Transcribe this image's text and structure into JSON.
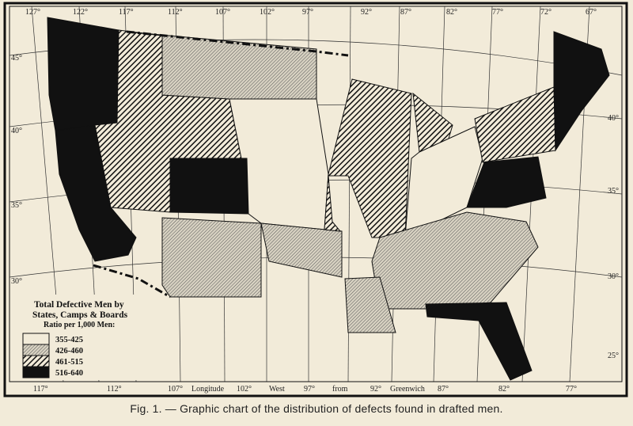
{
  "map": {
    "top_longitudes": [
      "127°",
      "122°",
      "117°",
      "112°",
      "107°",
      "102°",
      "97°",
      "92°",
      "87°",
      "82°",
      "77°",
      "72°",
      "67°"
    ],
    "bottom_longitudes": [
      "117°",
      "112°",
      "107°",
      "102°",
      "97°",
      "92°",
      "87°",
      "82°",
      "77°"
    ],
    "bottom_words": [
      "Longitude",
      "West",
      "from",
      "Greenwich"
    ],
    "left_latitudes": [
      "45°",
      "40°",
      "35°",
      "30°"
    ],
    "right_latitudes": [
      "40°",
      "35°",
      "30°",
      "25°"
    ]
  },
  "legend": {
    "title_line1": "Total Defective Men by",
    "title_line2": "States, Camps & Boards",
    "subtitle": "Ratio per 1,000 Men:",
    "items": [
      {
        "label": "355-425",
        "pattern": "blank",
        "color": "#f2ebd9"
      },
      {
        "label": "426-460",
        "pattern": "fine-hatch",
        "color": "#9a958c"
      },
      {
        "label": "461-515",
        "pattern": "coarse-hatch",
        "color": "#3a3a3a"
      },
      {
        "label": "516-640",
        "pattern": "solid",
        "color": "#111111"
      }
    ]
  },
  "caption": "Fig. 1. — Graphic chart of the distribution of defects found in drafted men."
}
